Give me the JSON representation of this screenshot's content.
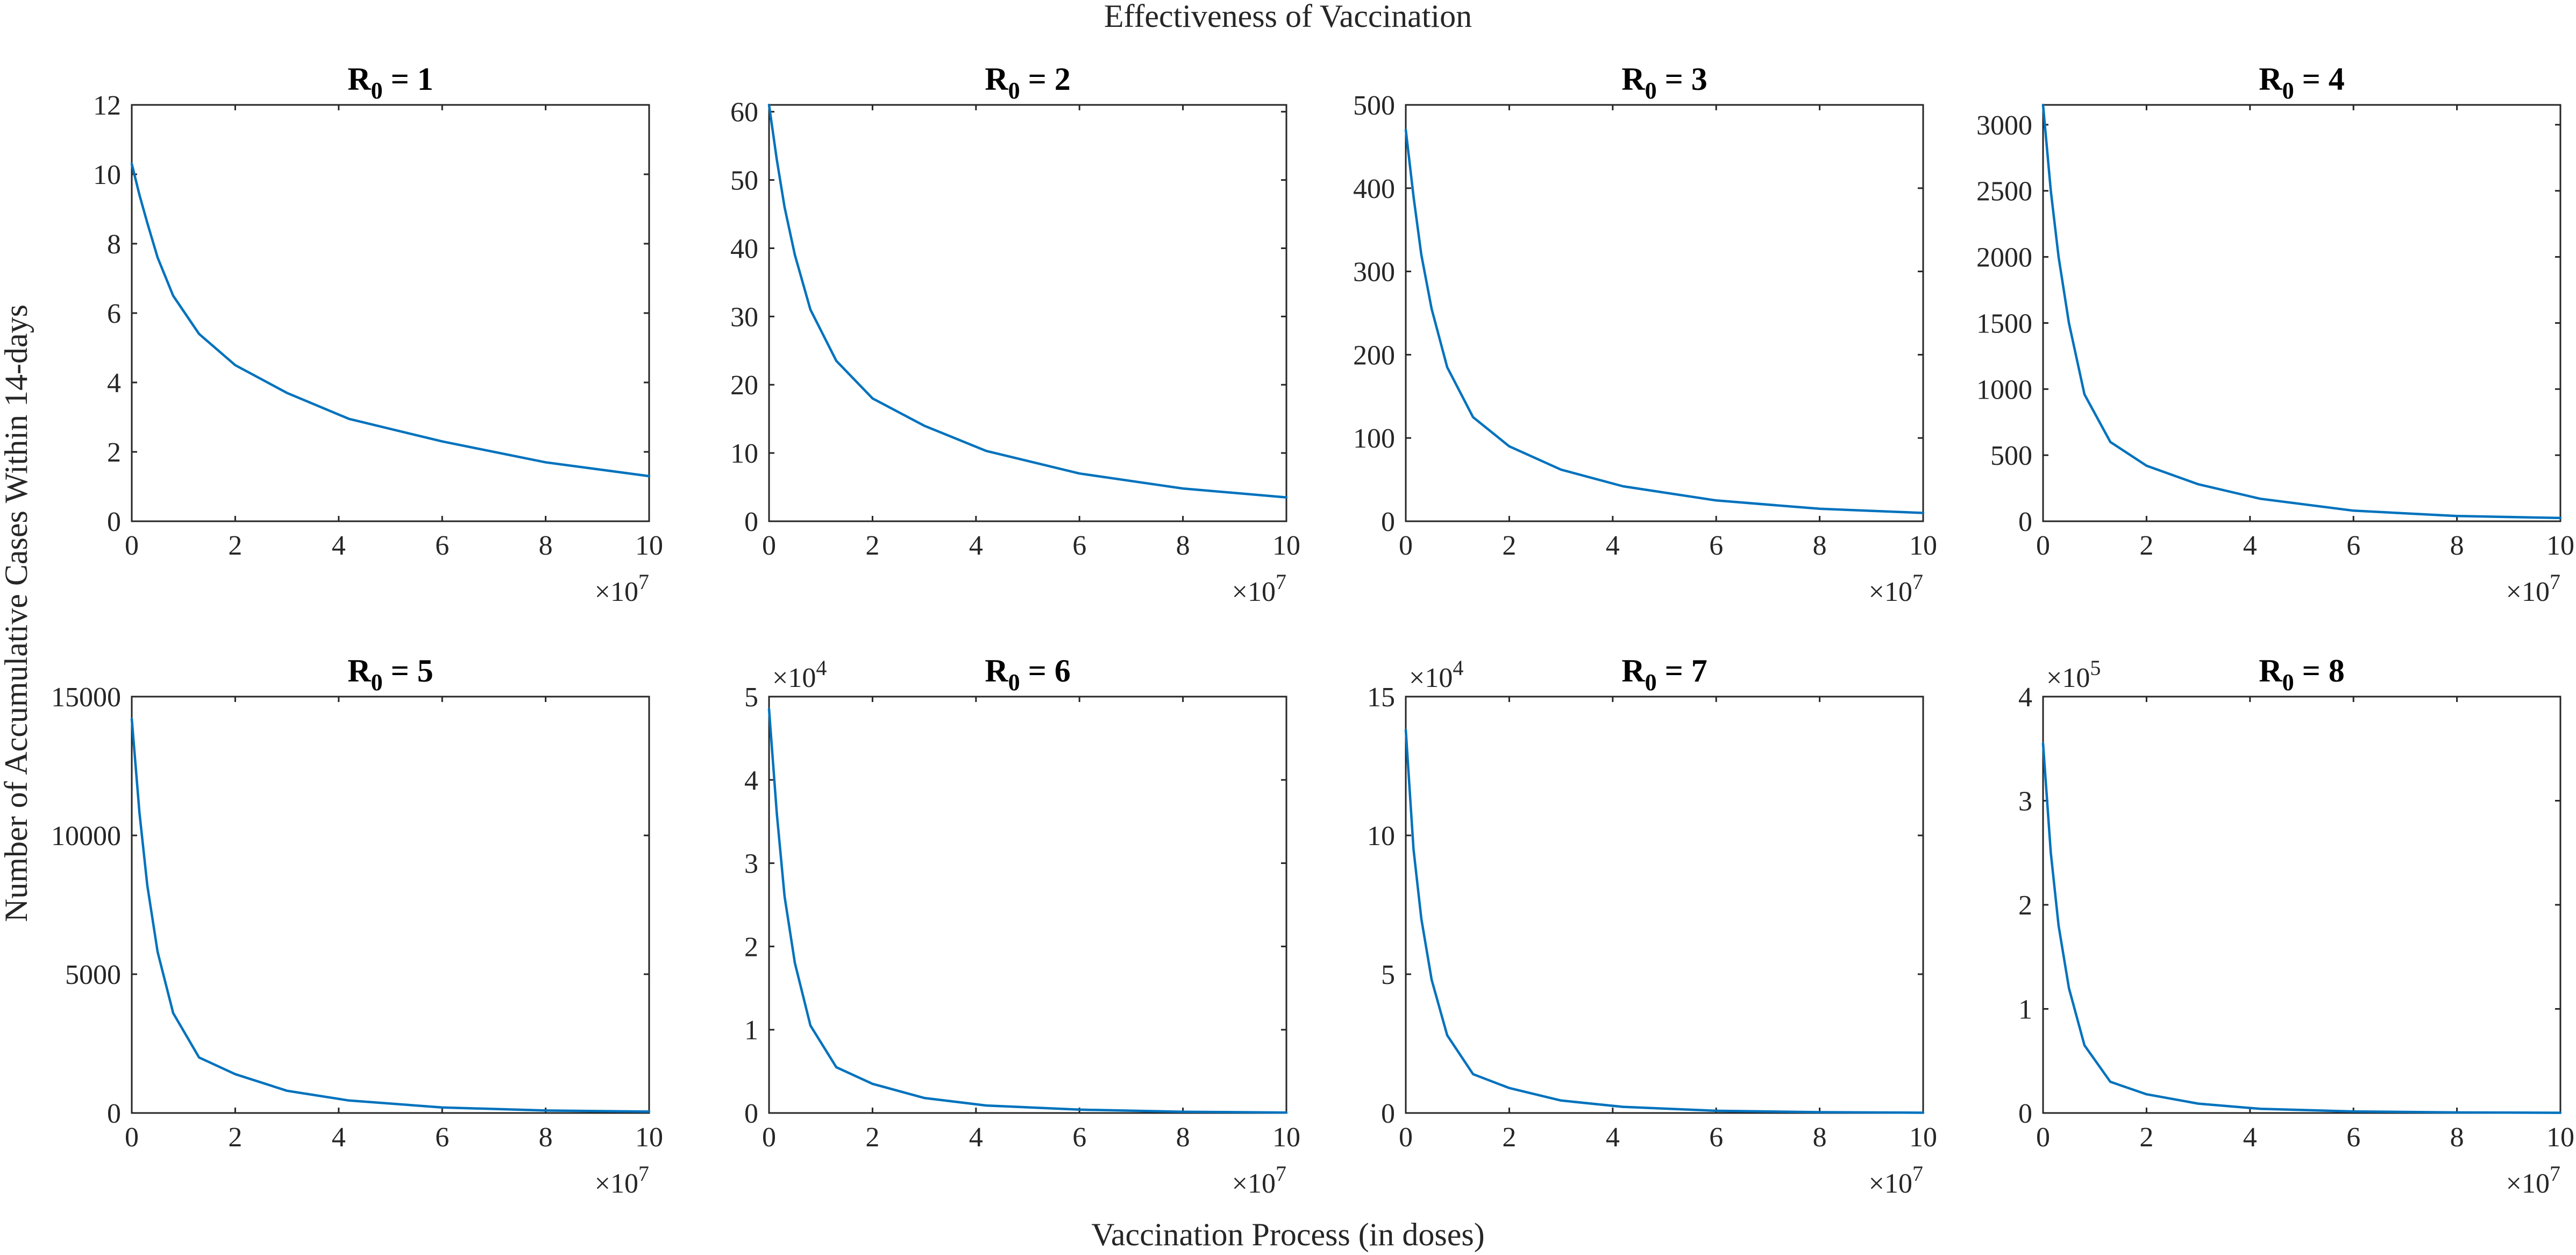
{
  "figure": {
    "suptitle": "Effectiveness of Vaccination",
    "ylabel": "Number of Accumulative Cases Within 14-days",
    "xlabel": "Vaccination Process (in doses)"
  },
  "chart_data": [
    {
      "type": "line",
      "title_main": "R",
      "title_sub": "0",
      "title_rest": " = 1",
      "xlim": [
        0,
        10
      ],
      "x_ticks": [
        "0",
        "2",
        "4",
        "6",
        "8",
        "10"
      ],
      "x_exponent": "7",
      "ylim": [
        0,
        12
      ],
      "y_ticks": [
        "0",
        "2",
        "4",
        "6",
        "8",
        "10",
        "12"
      ],
      "y_exponent": "",
      "series": [
        {
          "x": [
            0,
            0.15,
            0.3,
            0.5,
            0.8,
            1.3,
            2,
            3,
            4.2,
            6,
            8,
            10
          ],
          "y": [
            10.3,
            9.4,
            8.6,
            7.6,
            6.5,
            5.4,
            4.5,
            3.7,
            2.95,
            2.3,
            1.7,
            1.3
          ]
        }
      ]
    },
    {
      "type": "line",
      "title_main": "R",
      "title_sub": "0",
      "title_rest": " = 2",
      "xlim": [
        0,
        10
      ],
      "x_ticks": [
        "0",
        "2",
        "4",
        "6",
        "8",
        "10"
      ],
      "x_exponent": "7",
      "ylim": [
        0,
        61
      ],
      "y_ticks": [
        "0",
        "10",
        "20",
        "30",
        "40",
        "50",
        "60"
      ],
      "y_exponent": "",
      "series": [
        {
          "x": [
            0,
            0.15,
            0.3,
            0.5,
            0.8,
            1.3,
            2,
            3,
            4.2,
            6,
            8,
            10
          ],
          "y": [
            61,
            53,
            46,
            39,
            31,
            23.5,
            18,
            14,
            10.3,
            7,
            4.8,
            3.5
          ]
        }
      ]
    },
    {
      "type": "line",
      "title_main": "R",
      "title_sub": "0",
      "title_rest": " = 3",
      "xlim": [
        0,
        10
      ],
      "x_ticks": [
        "0",
        "2",
        "4",
        "6",
        "8",
        "10"
      ],
      "x_exponent": "7",
      "ylim": [
        0,
        500
      ],
      "y_ticks": [
        "0",
        "100",
        "200",
        "300",
        "400",
        "500"
      ],
      "y_exponent": "",
      "series": [
        {
          "x": [
            0,
            0.15,
            0.3,
            0.5,
            0.8,
            1.3,
            2,
            3,
            4.2,
            6,
            8,
            10
          ],
          "y": [
            470,
            390,
            320,
            255,
            185,
            125,
            90,
            62,
            42,
            25,
            15,
            10
          ]
        }
      ]
    },
    {
      "type": "line",
      "title_main": "R",
      "title_sub": "0",
      "title_rest": " = 4",
      "xlim": [
        0,
        10
      ],
      "x_ticks": [
        "0",
        "2",
        "4",
        "6",
        "8",
        "10"
      ],
      "x_exponent": "7",
      "ylim": [
        0,
        3150
      ],
      "y_ticks": [
        "0",
        "500",
        "1000",
        "1500",
        "2000",
        "2500",
        "3000"
      ],
      "y_exponent": "",
      "series": [
        {
          "x": [
            0,
            0.15,
            0.3,
            0.5,
            0.8,
            1.3,
            2,
            3,
            4.2,
            6,
            8,
            10
          ],
          "y": [
            3150,
            2500,
            2000,
            1500,
            960,
            600,
            420,
            280,
            170,
            80,
            40,
            25
          ]
        }
      ]
    },
    {
      "type": "line",
      "title_main": "R",
      "title_sub": "0",
      "title_rest": " = 5",
      "xlim": [
        0,
        10
      ],
      "x_ticks": [
        "0",
        "2",
        "4",
        "6",
        "8",
        "10"
      ],
      "x_exponent": "7",
      "ylim": [
        0,
        15000
      ],
      "y_ticks": [
        "0",
        "5000",
        "10000",
        "15000"
      ],
      "y_exponent": "",
      "series": [
        {
          "x": [
            0,
            0.15,
            0.3,
            0.5,
            0.8,
            1.3,
            2,
            3,
            4.2,
            6,
            8,
            10
          ],
          "y": [
            14200,
            10800,
            8200,
            5800,
            3600,
            2000,
            1400,
            800,
            450,
            200,
            90,
            50
          ]
        }
      ]
    },
    {
      "type": "line",
      "title_main": "R",
      "title_sub": "0",
      "title_rest": " = 6",
      "xlim": [
        0,
        10
      ],
      "x_ticks": [
        "0",
        "2",
        "4",
        "6",
        "8",
        "10"
      ],
      "x_exponent": "7",
      "ylim": [
        0,
        5
      ],
      "y_ticks": [
        "0",
        "1",
        "2",
        "3",
        "4",
        "5"
      ],
      "y_exponent": "4",
      "series": [
        {
          "x": [
            0,
            0.15,
            0.3,
            0.5,
            0.8,
            1.3,
            2,
            3,
            4.2,
            6,
            8,
            10
          ],
          "y": [
            4.85,
            3.6,
            2.6,
            1.8,
            1.05,
            0.55,
            0.35,
            0.18,
            0.09,
            0.04,
            0.015,
            0.005
          ]
        }
      ]
    },
    {
      "type": "line",
      "title_main": "R",
      "title_sub": "0",
      "title_rest": " = 7",
      "xlim": [
        0,
        10
      ],
      "x_ticks": [
        "0",
        "2",
        "4",
        "6",
        "8",
        "10"
      ],
      "x_exponent": "7",
      "ylim": [
        0,
        15
      ],
      "y_ticks": [
        "0",
        "5",
        "10",
        "15"
      ],
      "y_exponent": "4",
      "series": [
        {
          "x": [
            0,
            0.15,
            0.3,
            0.5,
            0.8,
            1.3,
            2,
            3,
            4.2,
            6,
            8,
            10
          ],
          "y": [
            13.8,
            9.5,
            7,
            4.8,
            2.8,
            1.4,
            0.9,
            0.45,
            0.22,
            0.08,
            0.03,
            0.01
          ]
        }
      ]
    },
    {
      "type": "line",
      "title_main": "R",
      "title_sub": "0",
      "title_rest": " = 8",
      "xlim": [
        0,
        10
      ],
      "x_ticks": [
        "0",
        "2",
        "4",
        "6",
        "8",
        "10"
      ],
      "x_exponent": "7",
      "ylim": [
        0,
        4
      ],
      "y_ticks": [
        "0",
        "1",
        "2",
        "3",
        "4"
      ],
      "y_exponent": "5",
      "series": [
        {
          "x": [
            0,
            0.15,
            0.3,
            0.5,
            0.8,
            1.3,
            2,
            3,
            4.2,
            6,
            8,
            10
          ],
          "y": [
            3.55,
            2.5,
            1.8,
            1.2,
            0.65,
            0.3,
            0.18,
            0.09,
            0.04,
            0.015,
            0.005,
            0.002
          ]
        }
      ]
    }
  ]
}
